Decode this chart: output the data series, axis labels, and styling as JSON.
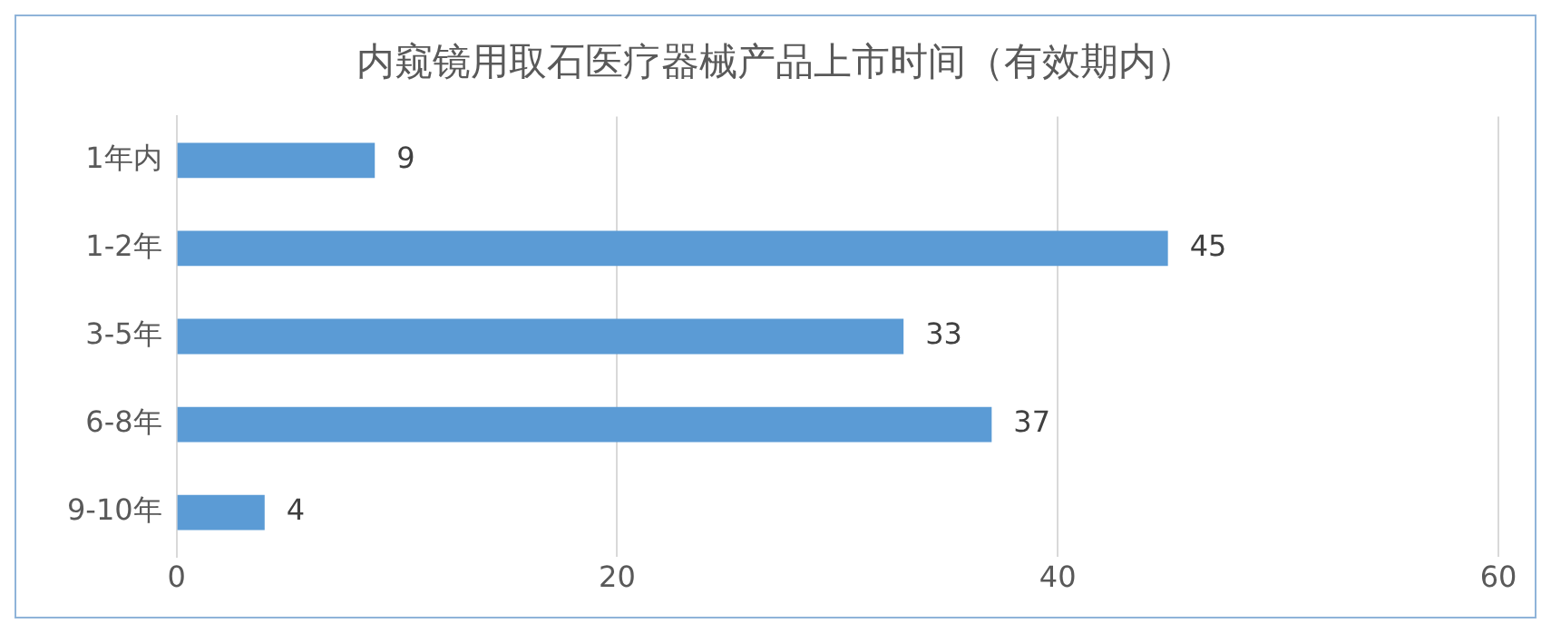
{
  "chart_data": {
    "type": "bar",
    "orientation": "horizontal",
    "title": "内窥镜用取石医疗器械产品上市时间（有效期内）",
    "categories": [
      "1年内",
      "1-2年",
      "3-5年",
      "6-8年",
      "9-10年"
    ],
    "values": [
      9,
      45,
      33,
      37,
      4
    ],
    "color": "#5b9bd5",
    "xlim": [
      0,
      60
    ],
    "xticks": [
      0,
      20,
      40,
      60
    ],
    "grid": "x",
    "data_labels": true
  }
}
